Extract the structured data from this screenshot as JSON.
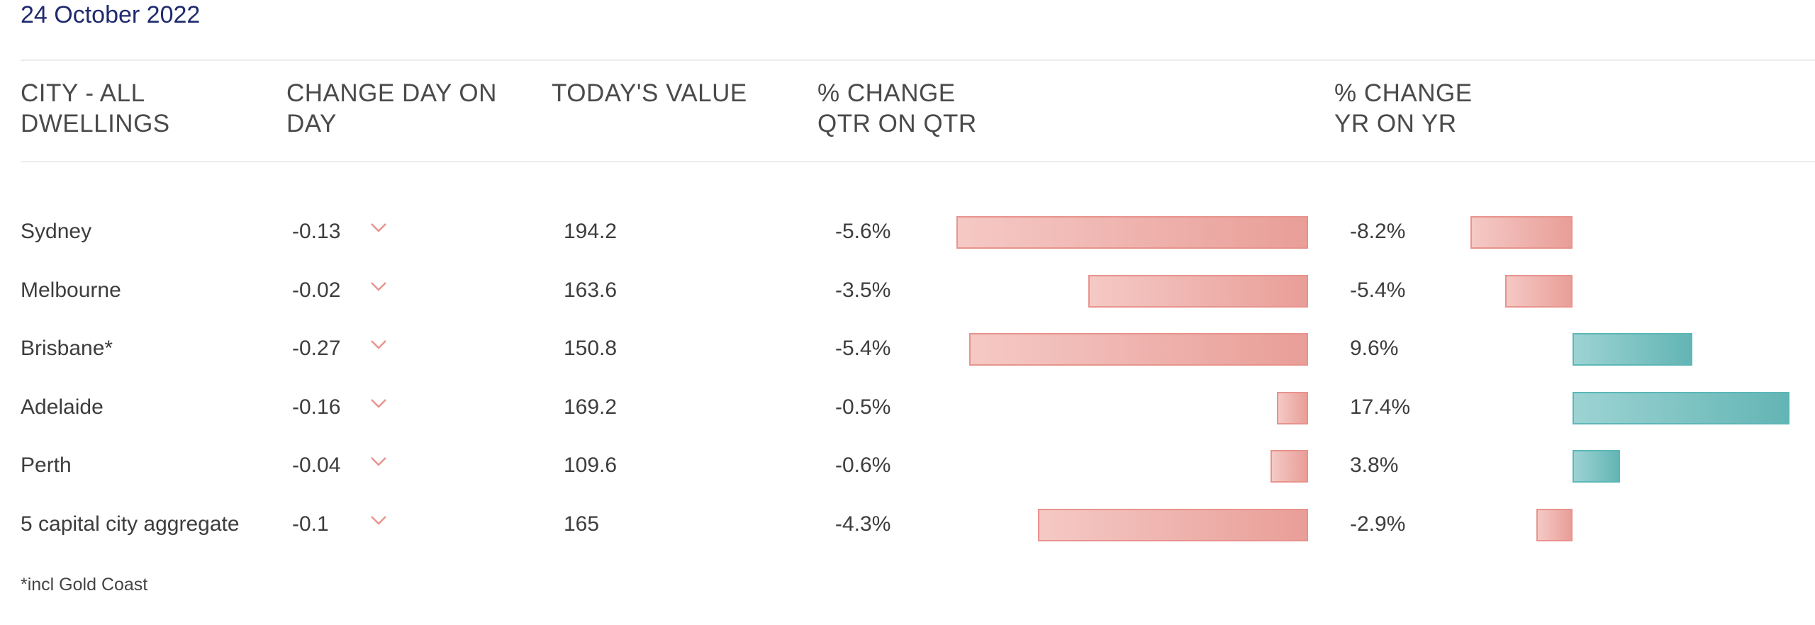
{
  "date": "24 October 2022",
  "headers": {
    "city": "CITY - ALL\nDWELLINGS",
    "day": "CHANGE DAY ON\nDAY",
    "value": "TODAY'S VALUE",
    "qtr": "% CHANGE\nQTR ON QTR",
    "yr": "% CHANGE\nYR ON YR"
  },
  "chart_data": {
    "type": "bar",
    "categories": [
      "Sydney",
      "Melbourne",
      "Brisbane*",
      "Adelaide",
      "Perth",
      "5 capital city aggregate"
    ],
    "series": [
      {
        "values": [
          -5.6,
          -3.5,
          -5.4,
          -0.5,
          -0.6,
          -4.3
        ]
      },
      {
        "values": [
          -8.2,
          -5.4,
          9.6,
          17.4,
          3.8,
          -2.9
        ]
      }
    ]
  },
  "rows": [
    {
      "city": "Sydney",
      "day": "-0.13",
      "value": "194.2",
      "qtr": "-5.6%",
      "yr": "-8.2%"
    },
    {
      "city": "Melbourne",
      "day": "-0.02",
      "value": "163.6",
      "qtr": "-3.5%",
      "yr": "-5.4%"
    },
    {
      "city": "Brisbane*",
      "day": "-0.27",
      "value": "150.8",
      "qtr": "-5.4%",
      "yr": "9.6%"
    },
    {
      "city": "Adelaide",
      "day": "-0.16",
      "value": "169.2",
      "qtr": "-0.5%",
      "yr": "17.4%"
    },
    {
      "city": "Perth",
      "day": "-0.04",
      "value": "109.6",
      "qtr": "-0.6%",
      "yr": "3.8%"
    },
    {
      "city": "5 capital city aggregate",
      "day": "-0.1",
      "value": "165",
      "qtr": "-4.3%",
      "yr": "-2.9%"
    }
  ],
  "footnote": "*incl Gold Coast",
  "colors": {
    "negative": "#e99e98",
    "positive": "#63b5b5",
    "date": "#1f2a6e",
    "chevron": "#e8938d"
  },
  "icons": {
    "day_trend": "chevron-down-icon"
  }
}
